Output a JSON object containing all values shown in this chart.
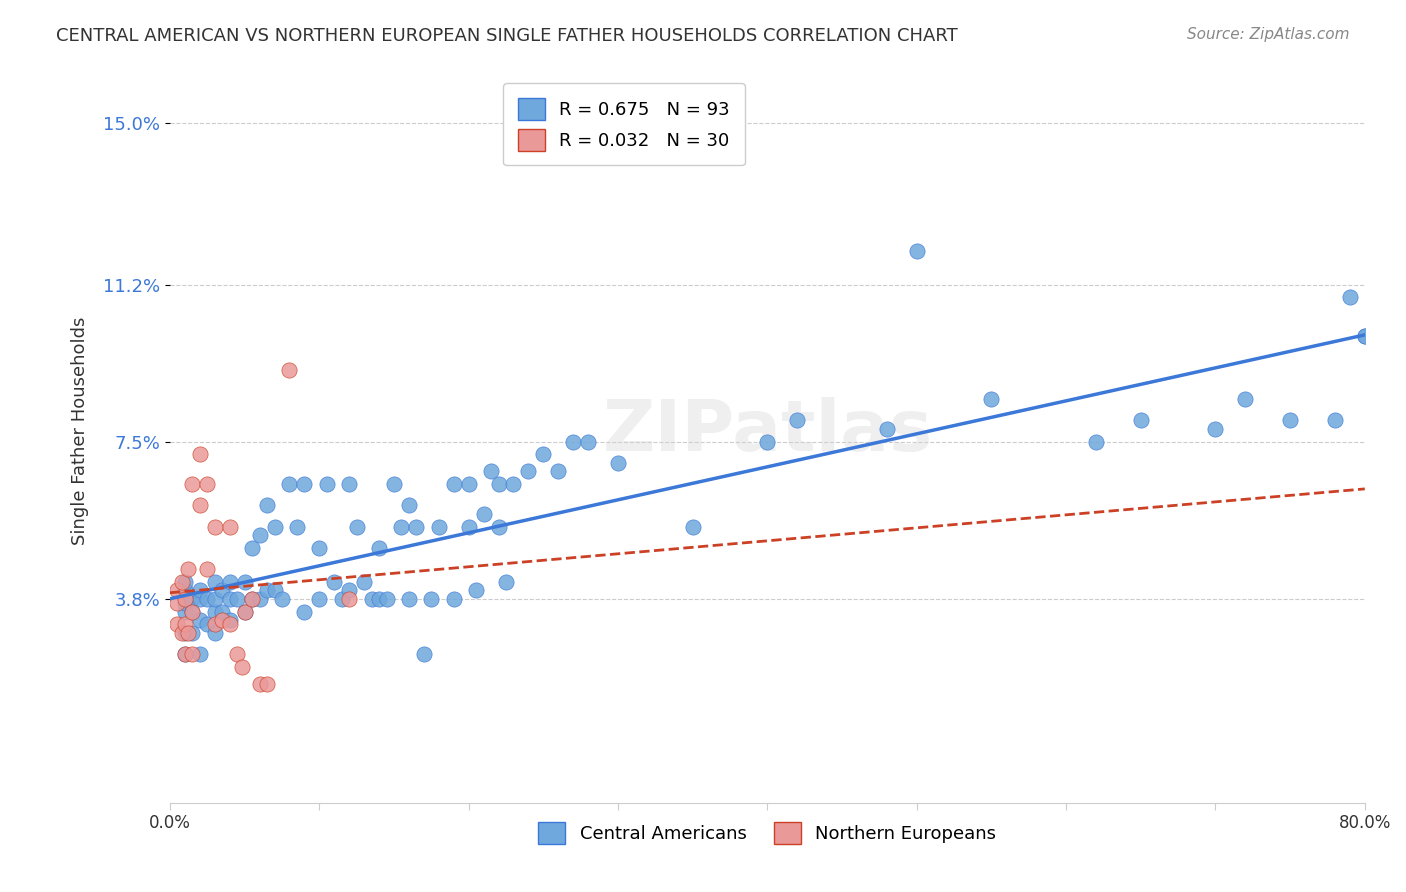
{
  "title": "CENTRAL AMERICAN VS NORTHERN EUROPEAN SINGLE FATHER HOUSEHOLDS CORRELATION CHART",
  "source": "Source: ZipAtlas.com",
  "xlabel": "",
  "ylabel": "Single Father Households",
  "xlim": [
    0,
    0.8
  ],
  "ylim": [
    -0.01,
    0.165
  ],
  "yticks": [
    0.038,
    0.075,
    0.112,
    0.15
  ],
  "ytick_labels": [
    "3.8%",
    "7.5%",
    "11.2%",
    "15.0%"
  ],
  "xticks": [
    0.0,
    0.1,
    0.2,
    0.3,
    0.4,
    0.5,
    0.6,
    0.7,
    0.8
  ],
  "xtick_labels": [
    "0.0%",
    "",
    "",
    "",
    "",
    "",
    "",
    "",
    "80.0%"
  ],
  "blue_R": 0.675,
  "blue_N": 93,
  "pink_R": 0.032,
  "pink_N": 30,
  "blue_color": "#6fa8dc",
  "pink_color": "#ea9999",
  "blue_line_color": "#3c78d8",
  "pink_line_color": "#cc4125",
  "background_color": "#ffffff",
  "grid_color": "#cccccc",
  "watermark": "ZIPatlas",
  "legend_label_blue": "Central Americans",
  "legend_label_pink": "Northern Europeans",
  "blue_scatter_x": [
    0.01,
    0.01,
    0.01,
    0.01,
    0.01,
    0.01,
    0.015,
    0.015,
    0.015,
    0.02,
    0.02,
    0.02,
    0.02,
    0.025,
    0.025,
    0.03,
    0.03,
    0.03,
    0.03,
    0.035,
    0.035,
    0.04,
    0.04,
    0.04,
    0.045,
    0.05,
    0.05,
    0.055,
    0.055,
    0.06,
    0.06,
    0.065,
    0.065,
    0.07,
    0.07,
    0.075,
    0.08,
    0.085,
    0.09,
    0.09,
    0.1,
    0.1,
    0.105,
    0.11,
    0.115,
    0.12,
    0.12,
    0.125,
    0.13,
    0.135,
    0.14,
    0.14,
    0.145,
    0.15,
    0.155,
    0.16,
    0.16,
    0.165,
    0.17,
    0.175,
    0.18,
    0.19,
    0.19,
    0.2,
    0.2,
    0.205,
    0.21,
    0.215,
    0.22,
    0.22,
    0.225,
    0.23,
    0.24,
    0.25,
    0.26,
    0.27,
    0.28,
    0.3,
    0.35,
    0.4,
    0.42,
    0.48,
    0.5,
    0.55,
    0.62,
    0.65,
    0.7,
    0.72,
    0.75,
    0.78,
    0.79,
    0.8,
    0.8
  ],
  "blue_scatter_y": [
    0.025,
    0.03,
    0.035,
    0.037,
    0.04,
    0.042,
    0.03,
    0.035,
    0.038,
    0.025,
    0.033,
    0.038,
    0.04,
    0.032,
    0.038,
    0.03,
    0.035,
    0.038,
    0.042,
    0.035,
    0.04,
    0.033,
    0.038,
    0.042,
    0.038,
    0.035,
    0.042,
    0.038,
    0.05,
    0.038,
    0.053,
    0.04,
    0.06,
    0.04,
    0.055,
    0.038,
    0.065,
    0.055,
    0.035,
    0.065,
    0.038,
    0.05,
    0.065,
    0.042,
    0.038,
    0.04,
    0.065,
    0.055,
    0.042,
    0.038,
    0.038,
    0.05,
    0.038,
    0.065,
    0.055,
    0.038,
    0.06,
    0.055,
    0.025,
    0.038,
    0.055,
    0.038,
    0.065,
    0.065,
    0.055,
    0.04,
    0.058,
    0.068,
    0.055,
    0.065,
    0.042,
    0.065,
    0.068,
    0.072,
    0.068,
    0.075,
    0.075,
    0.07,
    0.055,
    0.075,
    0.08,
    0.078,
    0.12,
    0.085,
    0.075,
    0.08,
    0.078,
    0.085,
    0.08,
    0.08,
    0.109,
    0.1,
    0.1
  ],
  "pink_scatter_x": [
    0.005,
    0.005,
    0.005,
    0.008,
    0.008,
    0.01,
    0.01,
    0.01,
    0.012,
    0.012,
    0.015,
    0.015,
    0.015,
    0.02,
    0.02,
    0.025,
    0.025,
    0.03,
    0.03,
    0.035,
    0.04,
    0.04,
    0.045,
    0.048,
    0.05,
    0.055,
    0.06,
    0.065,
    0.08,
    0.12
  ],
  "pink_scatter_y": [
    0.032,
    0.037,
    0.04,
    0.03,
    0.042,
    0.025,
    0.032,
    0.038,
    0.03,
    0.045,
    0.025,
    0.035,
    0.065,
    0.06,
    0.072,
    0.045,
    0.065,
    0.055,
    0.032,
    0.033,
    0.032,
    0.055,
    0.025,
    0.022,
    0.035,
    0.038,
    0.018,
    0.018,
    0.092,
    0.038
  ]
}
